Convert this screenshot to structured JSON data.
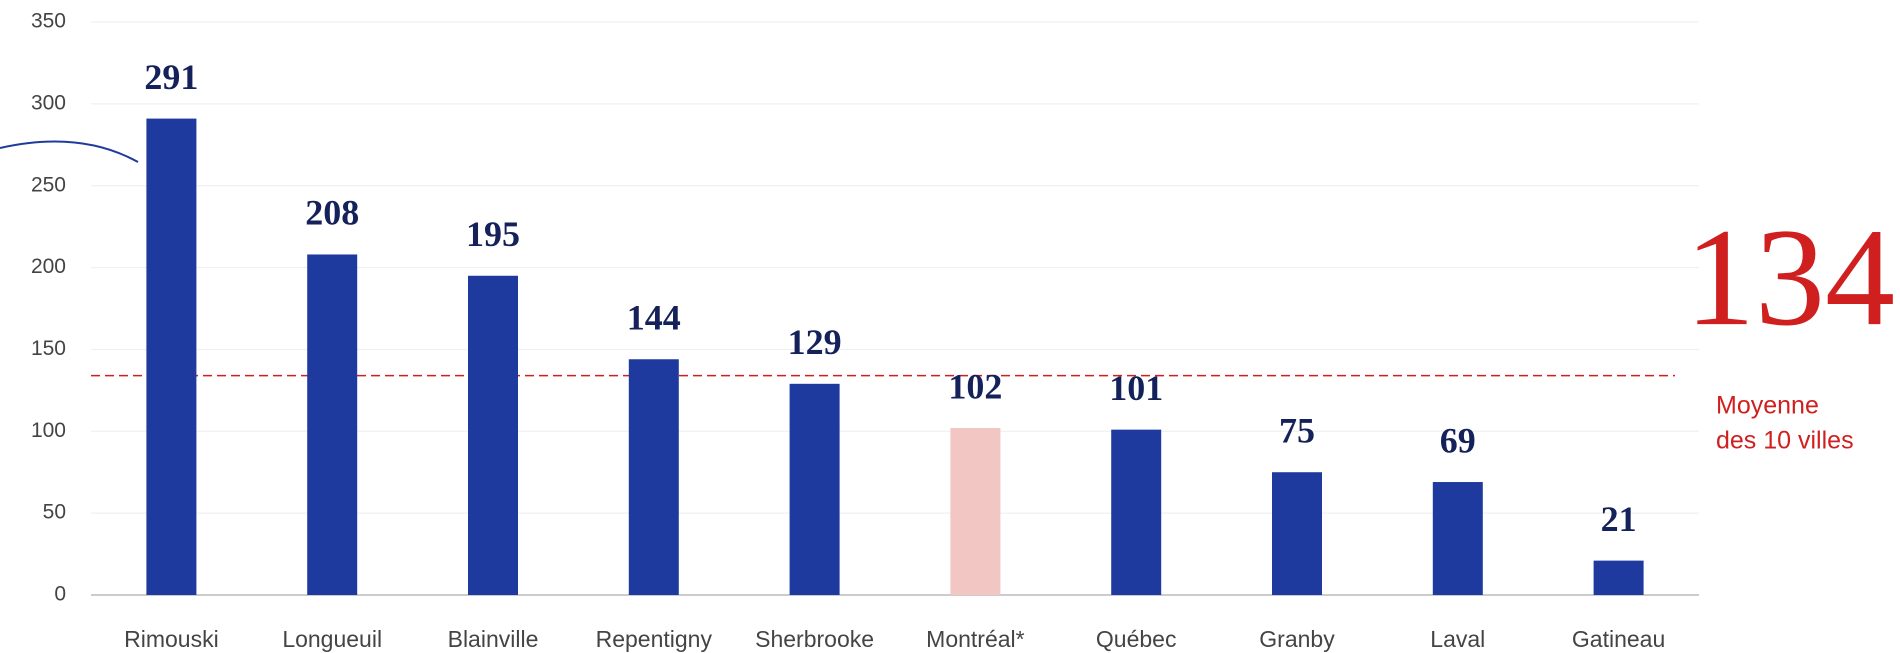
{
  "chart_data": {
    "type": "bar",
    "categories": [
      "Rimouski",
      "Longueuil",
      "Blainville",
      "Repentigny",
      "Sherbrooke",
      "Montréal*",
      "Québec",
      "Granby",
      "Laval",
      "Gatineau"
    ],
    "values": [
      291,
      208,
      195,
      144,
      129,
      102,
      101,
      75,
      69,
      21
    ],
    "colors": [
      "#1f3a9e",
      "#1f3a9e",
      "#1f3a9e",
      "#1f3a9e",
      "#1f3a9e",
      "#f2c6c2",
      "#1f3a9e",
      "#1f3a9e",
      "#1f3a9e",
      "#1f3a9e"
    ],
    "ylim": [
      0,
      350
    ],
    "yticks": [
      0,
      50,
      100,
      150,
      200,
      250,
      300,
      350
    ],
    "grid": true,
    "average": {
      "value": 134,
      "color": "#d01f1f",
      "label_lines": [
        "Moyenne",
        "des 10 villes"
      ]
    }
  }
}
